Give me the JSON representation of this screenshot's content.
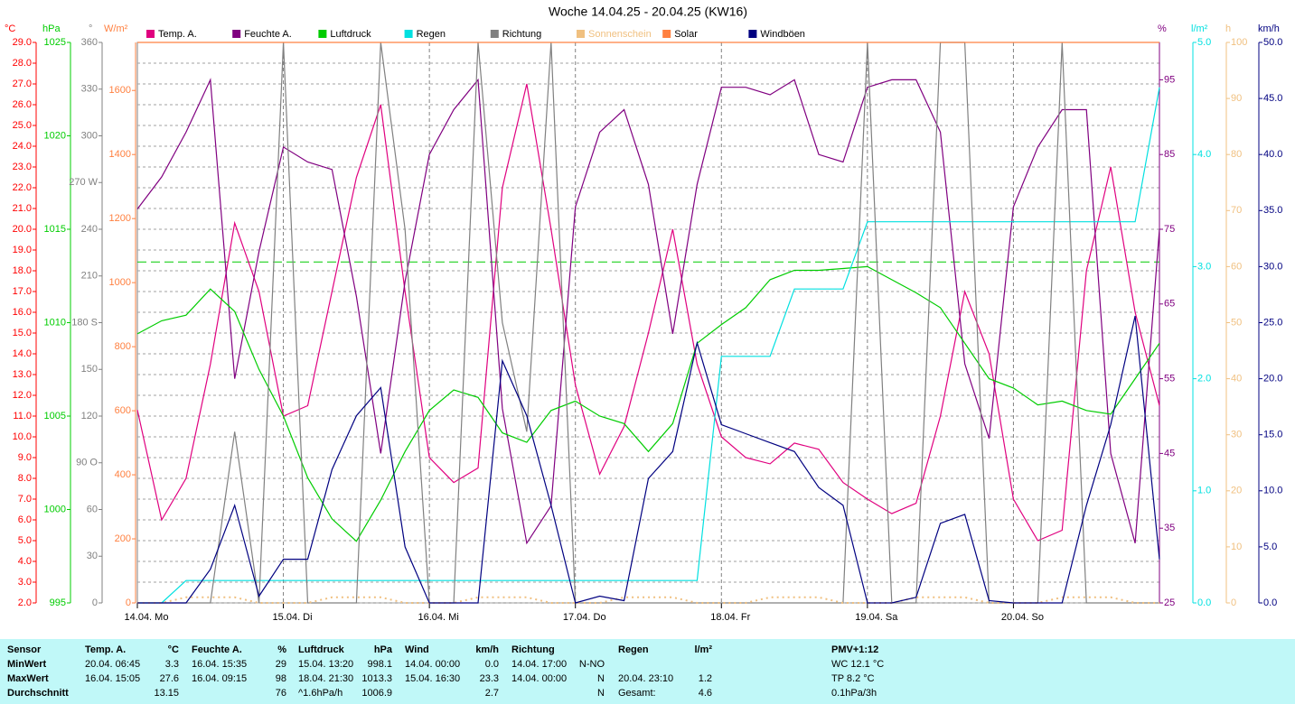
{
  "chart_data": {
    "type": "line",
    "title": "Woche 14.04.25 - 20.04.25 (KW16)",
    "x": [
      0,
      4,
      8,
      12,
      16,
      20,
      24,
      28,
      32,
      36,
      40,
      44,
      48,
      52,
      56,
      60,
      64,
      68,
      72,
      76,
      80,
      84,
      88,
      92,
      96,
      100,
      104,
      108,
      112,
      116,
      120,
      124,
      128,
      132,
      136,
      140,
      144,
      148,
      152,
      156,
      160,
      164,
      168
    ],
    "xlim": [
      0,
      168
    ],
    "xticks": [
      {
        "value": 0,
        "label": "14.04. Mo"
      },
      {
        "value": 24,
        "label": "15.04. Di"
      },
      {
        "value": 48,
        "label": "16.04. Mi"
      },
      {
        "value": 72,
        "label": "17.04. Do"
      },
      {
        "value": 96,
        "label": "18.04. Fr"
      },
      {
        "value": 120,
        "label": "19.04. Sa"
      },
      {
        "value": 144,
        "label": "20.04. So"
      }
    ],
    "grid": true,
    "reference_line": {
      "axis": 1,
      "value": 1013.25,
      "color": "#00cc00"
    },
    "axes": [
      {
        "label": "°C",
        "side": "left",
        "color": "#ff0000",
        "lim": [
          2,
          29
        ],
        "ticks": [
          {
            "value": 2,
            "label": "2.0"
          },
          {
            "value": 3,
            "label": "3.0"
          },
          {
            "value": 4,
            "label": "4.0"
          },
          {
            "value": 5,
            "label": "5.0"
          },
          {
            "value": 6,
            "label": "6.0"
          },
          {
            "value": 7,
            "label": "7.0"
          },
          {
            "value": 8,
            "label": "8.0"
          },
          {
            "value": 9,
            "label": "9.0"
          },
          {
            "value": 10,
            "label": "10.0"
          },
          {
            "value": 11,
            "label": "11.0"
          },
          {
            "value": 12,
            "label": "12.0"
          },
          {
            "value": 13,
            "label": "13.0"
          },
          {
            "value": 14,
            "label": "14.0"
          },
          {
            "value": 15,
            "label": "15.0"
          },
          {
            "value": 16,
            "label": "16.0"
          },
          {
            "value": 17,
            "label": "17.0"
          },
          {
            "value": 18,
            "label": "18.0"
          },
          {
            "value": 19,
            "label": "19.0"
          },
          {
            "value": 20,
            "label": "20.0"
          },
          {
            "value": 21,
            "label": "21.0"
          },
          {
            "value": 22,
            "label": "22.0"
          },
          {
            "value": 23,
            "label": "23.0"
          },
          {
            "value": 24,
            "label": "24.0"
          },
          {
            "value": 25,
            "label": "25.0"
          },
          {
            "value": 26,
            "label": "26.0"
          },
          {
            "value": 27,
            "label": "27.0"
          },
          {
            "value": 28,
            "label": "28.0"
          },
          {
            "value": 29,
            "label": "29.0"
          }
        ]
      },
      {
        "label": "hPa",
        "side": "left",
        "color": "#00cc00",
        "lim": [
          995,
          1025
        ],
        "ticks": [
          995,
          1000,
          1005,
          1010,
          1015,
          1020,
          1025
        ]
      },
      {
        "label": "°",
        "side": "left",
        "color": "#808080",
        "lim": [
          0,
          360
        ],
        "ticks": [
          0,
          30,
          60,
          {
            "value": 90,
            "label": "90 O"
          },
          120,
          150,
          {
            "value": 180,
            "label": "180 S"
          },
          210,
          240,
          {
            "value": 270,
            "label": "270 W"
          },
          300,
          330,
          360
        ]
      },
      {
        "label": "W/m²",
        "side": "left",
        "color": "#ff8040",
        "lim": [
          0,
          1750
        ],
        "ticks": [
          0,
          200,
          400,
          600,
          800,
          1000,
          1200,
          1400,
          1600
        ]
      },
      {
        "label": "%",
        "side": "right",
        "color": "#800080",
        "lim": [
          25,
          100
        ],
        "ticks": [
          25,
          35,
          45,
          55,
          65,
          75,
          85,
          95
        ]
      },
      {
        "label": "l/m²",
        "side": "right",
        "color": "#00e0e0",
        "lim": [
          0,
          5
        ],
        "ticks": [
          {
            "value": 0,
            "label": "0.0"
          },
          {
            "value": 1,
            "label": "1.0"
          },
          {
            "value": 2,
            "label": "2.0"
          },
          {
            "value": 3,
            "label": "3.0"
          },
          {
            "value": 4,
            "label": "4.0"
          },
          {
            "value": 5,
            "label": "5.0"
          }
        ]
      },
      {
        "label": "h",
        "side": "right",
        "color": "#f0c080",
        "lim": [
          0,
          100
        ],
        "ticks": [
          0,
          10,
          20,
          30,
          40,
          50,
          60,
          70,
          80,
          90,
          100
        ]
      },
      {
        "label": "km/h",
        "side": "right",
        "color": "#000080",
        "lim": [
          0,
          50
        ],
        "ticks": [
          {
            "value": 0,
            "label": "0.0"
          },
          {
            "value": 5,
            "label": "5.0"
          },
          {
            "value": 10,
            "label": "10.0"
          },
          {
            "value": 15,
            "label": "15.0"
          },
          {
            "value": 20,
            "label": "20.0"
          },
          {
            "value": 25,
            "label": "25.0"
          },
          {
            "value": 30,
            "label": "30.0"
          },
          {
            "value": 35,
            "label": "35.0"
          },
          {
            "value": 40,
            "label": "40.0"
          },
          {
            "value": 45,
            "label": "45.0"
          },
          {
            "value": 50,
            "label": "50.0"
          }
        ]
      }
    ],
    "series": [
      {
        "name": "Temp. A.",
        "color": "#e0007f",
        "axis": 0,
        "values": [
          11.3,
          6.0,
          8.0,
          13.5,
          20.3,
          17.0,
          11.0,
          11.5,
          17.0,
          22.5,
          26.0,
          17.0,
          9.0,
          7.8,
          8.5,
          22.0,
          27.0,
          20.0,
          12.5,
          8.2,
          10.5,
          15.0,
          20.0,
          13.5,
          10.0,
          9.0,
          8.7,
          9.7,
          9.4,
          7.8,
          7.0,
          6.3,
          6.8,
          11.0,
          17.0,
          14.0,
          7.0,
          5.0,
          5.5,
          18.0,
          23.0,
          16.0,
          11.5
        ]
      },
      {
        "name": "Feuchte A.",
        "color": "#800080",
        "axis": 4,
        "values": [
          77.7,
          82,
          88,
          95,
          55,
          72,
          86,
          84,
          83,
          66,
          45,
          68,
          85,
          91,
          95,
          51,
          33,
          38,
          78,
          88,
          91,
          81,
          61,
          81,
          94,
          94,
          93,
          95,
          85,
          84,
          94,
          95,
          95,
          88,
          57,
          47,
          78,
          86,
          91,
          91,
          45,
          33,
          75
        ]
      },
      {
        "name": "Luftdruck",
        "color": "#00cc00",
        "axis": 1,
        "values": [
          1009.4,
          1010.1,
          1010.4,
          1011.8,
          1010.6,
          1007.5,
          1005.0,
          1001.7,
          999.5,
          998.3,
          1000.5,
          1003.1,
          1005.3,
          1006.4,
          1006.0,
          1004.1,
          1003.6,
          1005.3,
          1005.8,
          1005.0,
          1004.6,
          1003.1,
          1004.6,
          1008.9,
          1009.9,
          1010.8,
          1012.3,
          1012.8,
          1012.8,
          1012.9,
          1013.0,
          1012.3,
          1011.6,
          1010.8,
          1008.9,
          1007.0,
          1006.5,
          1005.6,
          1005.8,
          1005.3,
          1005.1,
          1007.0,
          1008.9
        ]
      },
      {
        "name": "Regen",
        "color": "#00e0e0",
        "axis": 5,
        "values": [
          0,
          0,
          0.2,
          0.2,
          0.2,
          0.2,
          0.2,
          0.2,
          0.2,
          0.2,
          0.2,
          0.2,
          0.2,
          0.2,
          0.2,
          0.2,
          0.2,
          0.2,
          0.2,
          0.2,
          0.2,
          0.2,
          0.2,
          0.2,
          2.2,
          2.2,
          2.2,
          2.8,
          2.8,
          2.8,
          3.4,
          3.4,
          3.4,
          3.4,
          3.4,
          3.4,
          3.4,
          3.4,
          3.4,
          3.4,
          3.4,
          3.4,
          4.6
        ]
      },
      {
        "name": "Richtung",
        "color": "#808080",
        "axis": 2,
        "values": [
          0,
          0,
          0,
          0,
          110,
          0,
          360,
          0,
          0,
          0,
          360,
          240,
          0,
          0,
          360,
          180,
          110,
          360,
          0,
          0,
          0,
          0,
          0,
          0,
          0,
          0,
          0,
          0,
          0,
          0,
          360,
          0,
          0,
          360,
          360,
          0,
          0,
          0,
          360,
          0,
          0,
          0,
          0
        ]
      },
      {
        "name": "Sonnenschein",
        "color": "#f0c080",
        "axis": 6,
        "dotted": true,
        "values": [
          0,
          0,
          1,
          1,
          1,
          0,
          0,
          0,
          1,
          1,
          1,
          0,
          0,
          0,
          1,
          1,
          1,
          0,
          0,
          0,
          1,
          1,
          1,
          0,
          0,
          0,
          1,
          1,
          1,
          0,
          0,
          0,
          1,
          1,
          1,
          0,
          0,
          0,
          1,
          1,
          1,
          0,
          0
        ]
      },
      {
        "name": "Solar",
        "color": "#ff8040",
        "axis": 3,
        "values": [
          1750,
          1750,
          1750,
          1750,
          1750,
          1750,
          1750,
          1750,
          1750,
          1750,
          1750,
          1750,
          1750,
          1750,
          1750,
          1750,
          1750,
          1750,
          1750,
          1750,
          1750,
          1750,
          1750,
          1750,
          1750,
          1750,
          1750,
          1750,
          1750,
          1750,
          1750,
          1750,
          1750,
          1750,
          1750,
          1750,
          1750,
          1750,
          1750,
          1750,
          1750,
          1750,
          1750
        ]
      },
      {
        "name": "Windböen",
        "color": "#000080",
        "axis": 7,
        "values": [
          0,
          0,
          0,
          3,
          8.7,
          0.6,
          3.9,
          3.9,
          11.9,
          16.7,
          19.2,
          5,
          0,
          0,
          0,
          21.6,
          16.7,
          8.7,
          0,
          0.6,
          0.2,
          11.1,
          13.5,
          23.2,
          15.9,
          15.1,
          14.3,
          13.5,
          10.3,
          8.7,
          0,
          0,
          0.5,
          7.1,
          7.9,
          0.2,
          0,
          0,
          0,
          8.7,
          15.9,
          25.6,
          3.9
        ]
      }
    ]
  },
  "table": {
    "rows": [
      [
        "Sensor",
        "Temp. A.",
        "°C",
        "Feuchte A.",
        "%",
        "Luftdruck",
        "hPa",
        "Wind",
        "km/h",
        "Richtung",
        null,
        "Regen",
        "l/m²",
        "PMV+1:12"
      ],
      [
        "MinWert",
        "20.04. 06:45",
        "3.3",
        "16.04. 15:35",
        "29",
        "15.04. 13:20",
        "998.1",
        "14.04. 00:00",
        "0.0",
        "14.04. 17:00",
        "N-NO",
        null,
        null,
        "WC 12.1 °C"
      ],
      [
        "MaxWert",
        "16.04. 15:05",
        "27.6",
        "16.04. 09:15",
        "98",
        "18.04. 21:30",
        "1013.3",
        "15.04. 16:30",
        "23.3",
        "14.04. 00:00",
        "N",
        "20.04. 23:10",
        "1.2",
        "TP 8.2 °C"
      ],
      [
        "Durchschnitt",
        null,
        "13.15",
        null,
        "76",
        "^1.6hPa/h",
        "1006.9",
        null,
        "2.7",
        null,
        "N",
        "Gesamt:",
        "4.6",
        "0.1hPa/3h"
      ]
    ]
  }
}
